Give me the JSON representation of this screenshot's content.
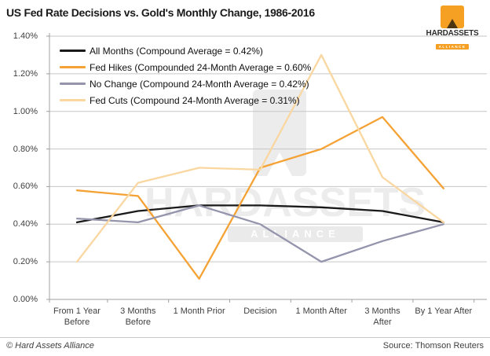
{
  "title": "US Fed Rate Decisions vs. Gold's Monthly Change, 1986-2016",
  "logo": {
    "hard": "HARD",
    "assets": "ASSETS",
    "alliance": "ALLIANCE"
  },
  "watermark": {
    "text": "HARDASSETS",
    "alliance": "ALLIANCE"
  },
  "footer": {
    "copyright": "© Hard Assets Alliance",
    "source": "Source: Thomson Reuters"
  },
  "chart_data": {
    "type": "line",
    "title": "US Fed Rate Decisions vs. Gold's Monthly Change, 1986-2016",
    "categories": [
      "From 1 Year Before",
      "3 Months Before",
      "1 Month Prior",
      "Decision",
      "1 Month After",
      "3 Months After",
      "By 1 Year After"
    ],
    "categories_display": [
      [
        "From 1 Year",
        "Before"
      ],
      [
        "3 Months",
        "Before"
      ],
      [
        "1 Month Prior"
      ],
      [
        "Decision"
      ],
      [
        "1 Month After"
      ],
      [
        "3 Months",
        "After"
      ],
      [
        "By 1 Year After"
      ]
    ],
    "series": [
      {
        "name": "All Months (Compound Average = 0.42%)",
        "color": "#1a1a1a",
        "values": [
          0.41,
          0.47,
          0.5,
          0.5,
          0.49,
          0.47,
          0.41
        ]
      },
      {
        "name": "Fed Hikes (Compounded 24-Month Average = 0.60%",
        "color": "#F5A235",
        "values": [
          0.58,
          0.55,
          0.11,
          0.7,
          0.8,
          0.97,
          0.59
        ]
      },
      {
        "name": "No Change (Compound 24-Month Average = 0.42%)",
        "color": "#9494AC",
        "values": [
          0.43,
          0.41,
          0.5,
          0.4,
          0.2,
          0.31,
          0.4
        ]
      },
      {
        "name": "Fed Cuts (Compound 24-Month Average = 0.31%)",
        "color": "#FAD7A0",
        "values": [
          0.2,
          0.62,
          0.7,
          0.69,
          1.3,
          0.65,
          0.41
        ]
      }
    ],
    "ylim": [
      0,
      1.4
    ],
    "ytick_step": 0.2,
    "ytick_labels": [
      "0.00%",
      "0.20%",
      "0.40%",
      "0.60%",
      "0.80%",
      "1.00%",
      "1.20%",
      "1.40%"
    ],
    "grid": true,
    "legend_position": "top-left",
    "gridline_color": "#c6c6c6",
    "axis_color": "#a0a0a0"
  }
}
